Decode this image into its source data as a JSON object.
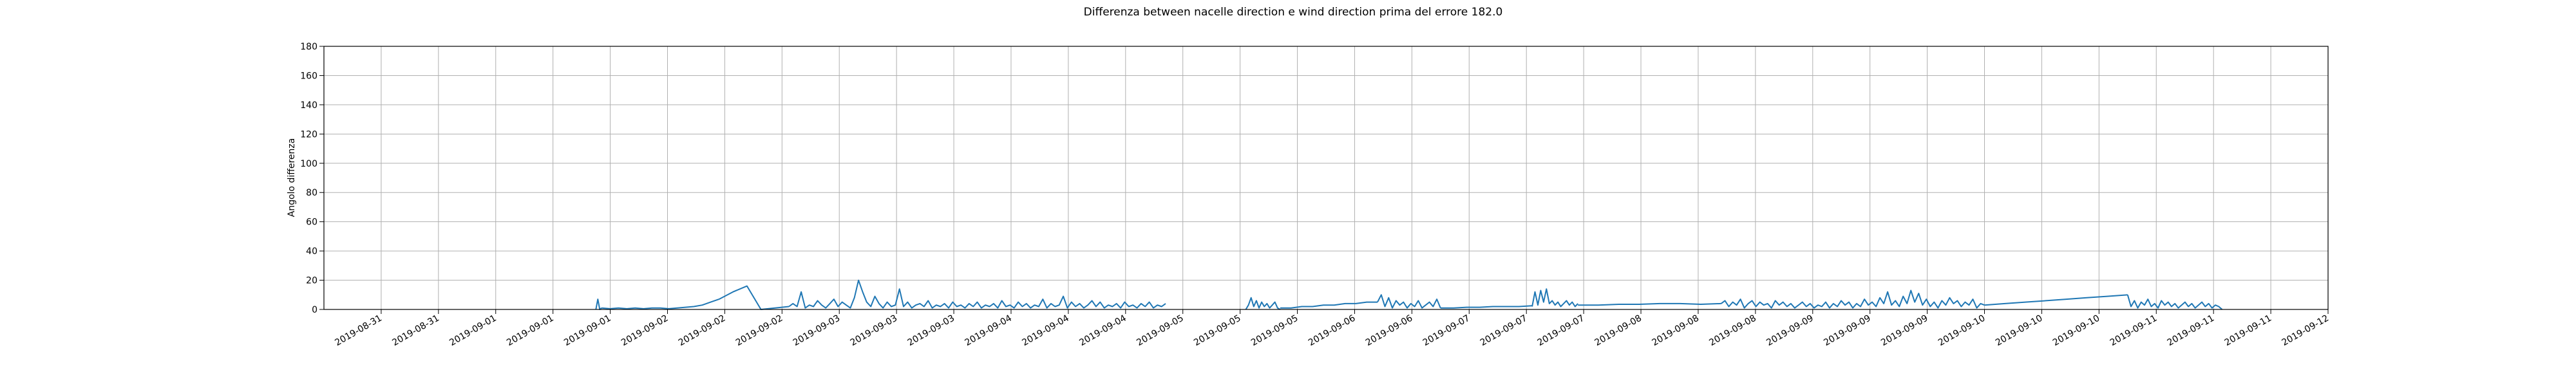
{
  "chart_data": {
    "type": "line",
    "title": "Differenza between nacelle direction e wind direction prima del errore 182.0",
    "xlabel": "",
    "ylabel": "Angolo differenza",
    "ylim": [
      0,
      180
    ],
    "yticks": [
      0,
      20,
      40,
      60,
      80,
      100,
      120,
      140,
      160,
      180
    ],
    "xlim": [
      0,
      35
    ],
    "xticks": [
      {
        "pos": 1,
        "label": "2019-08-31"
      },
      {
        "pos": 2,
        "label": "2019-08-31"
      },
      {
        "pos": 3,
        "label": "2019-09-01"
      },
      {
        "pos": 4,
        "label": "2019-09-01"
      },
      {
        "pos": 5,
        "label": "2019-09-01"
      },
      {
        "pos": 6,
        "label": "2019-09-02"
      },
      {
        "pos": 7,
        "label": "2019-09-02"
      },
      {
        "pos": 8,
        "label": "2019-09-02"
      },
      {
        "pos": 9,
        "label": "2019-09-03"
      },
      {
        "pos": 10,
        "label": "2019-09-03"
      },
      {
        "pos": 11,
        "label": "2019-09-03"
      },
      {
        "pos": 12,
        "label": "2019-09-04"
      },
      {
        "pos": 13,
        "label": "2019-09-04"
      },
      {
        "pos": 14,
        "label": "2019-09-04"
      },
      {
        "pos": 15,
        "label": "2019-09-05"
      },
      {
        "pos": 16,
        "label": "2019-09-05"
      },
      {
        "pos": 17,
        "label": "2019-09-05"
      },
      {
        "pos": 18,
        "label": "2019-09-06"
      },
      {
        "pos": 19,
        "label": "2019-09-06"
      },
      {
        "pos": 20,
        "label": "2019-09-07"
      },
      {
        "pos": 21,
        "label": "2019-09-07"
      },
      {
        "pos": 22,
        "label": "2019-09-07"
      },
      {
        "pos": 23,
        "label": "2019-09-08"
      },
      {
        "pos": 24,
        "label": "2019-09-08"
      },
      {
        "pos": 25,
        "label": "2019-09-08"
      },
      {
        "pos": 26,
        "label": "2019-09-09"
      },
      {
        "pos": 27,
        "label": "2019-09-09"
      },
      {
        "pos": 28,
        "label": "2019-09-09"
      },
      {
        "pos": 29,
        "label": "2019-09-10"
      },
      {
        "pos": 30,
        "label": "2019-09-10"
      },
      {
        "pos": 31,
        "label": "2019-09-10"
      },
      {
        "pos": 32,
        "label": "2019-09-11"
      },
      {
        "pos": 33,
        "label": "2019-09-11"
      },
      {
        "pos": 34,
        "label": "2019-09-11"
      },
      {
        "pos": 35,
        "label": "2019-09-12"
      }
    ],
    "series": [
      {
        "name": "Angolo differenza",
        "color": "#1f77b4",
        "segments": [
          {
            "x0": 4.75,
            "x1": 4.85,
            "values": [
              0,
              7,
              0,
              1
            ]
          },
          {
            "x0": 4.85,
            "x1": 6.9,
            "values": [
              1,
              0.5,
              1,
              0.5,
              1,
              0.5,
              1,
              1,
              0.5,
              1,
              1.5,
              2,
              3,
              5,
              7
            ]
          },
          {
            "x0": 6.9,
            "x1": 8.12,
            "values": [
              7,
              12,
              16,
              0,
              1,
              2
            ]
          },
          {
            "x0": 8.12,
            "x1": 14.7,
            "values": [
              2,
              4,
              2,
              12,
              1,
              3,
              2,
              6,
              3,
              1,
              4,
              7,
              2,
              5,
              3,
              1,
              8,
              20,
              12,
              5,
              2,
              9,
              4,
              1,
              5,
              2,
              3,
              14,
              2,
              5,
              1,
              3,
              4,
              2,
              6,
              1,
              3,
              2,
              4,
              1,
              5,
              2,
              3,
              1,
              4,
              2,
              5,
              1,
              3,
              2,
              4,
              1,
              6,
              2,
              3,
              1,
              5,
              2,
              4,
              1,
              3,
              2,
              7,
              1,
              4,
              2,
              3,
              9,
              1,
              5,
              2,
              4,
              1,
              3,
              6,
              2,
              5,
              1,
              3,
              2,
              4,
              1,
              5,
              2,
              3,
              1,
              4,
              2,
              5,
              1,
              3,
              2,
              4
            ]
          },
          {
            "x0": 16.1,
            "x1": 16.7,
            "values": [
              0,
              3,
              8,
              2,
              6,
              1,
              5,
              2,
              4,
              1,
              3,
              5,
              1,
              0
            ]
          },
          {
            "x0": 16.7,
            "x1": 18.4,
            "values": [
              1,
              1,
              2,
              2,
              3,
              3,
              4,
              4,
              5,
              5
            ]
          },
          {
            "x0": 18.4,
            "x1": 19.5,
            "values": [
              5,
              10,
              2,
              8,
              1,
              6,
              3,
              5,
              1,
              4,
              2,
              6,
              1,
              3,
              5,
              2,
              7,
              1
            ]
          },
          {
            "x0": 19.5,
            "x1": 21.1,
            "values": [
              1,
              1,
              1.5,
              1.5,
              2,
              2,
              2,
              2.5
            ]
          },
          {
            "x0": 21.1,
            "x1": 21.9,
            "values": [
              2,
              12,
              3,
              13,
              5,
              14,
              4,
              6,
              3,
              5,
              2,
              4,
              6,
              3,
              5,
              2,
              4
            ]
          },
          {
            "x0": 21.9,
            "x1": 24.4,
            "values": [
              3,
              3,
              3.5,
              3.5,
              4,
              4,
              3.5,
              4
            ]
          },
          {
            "x0": 24.4,
            "x1": 29.0,
            "values": [
              4,
              6,
              2,
              5,
              3,
              7,
              1,
              4,
              6,
              2,
              5,
              3,
              4,
              1,
              6,
              3,
              5,
              2,
              4,
              1,
              3,
              5,
              2,
              4,
              1,
              3,
              2,
              5,
              1,
              4,
              2,
              6,
              3,
              5,
              1,
              4,
              2,
              7,
              3,
              5,
              2,
              8,
              4,
              12,
              3,
              6,
              2,
              9,
              4,
              13,
              5,
              11,
              3,
              7,
              2,
              5,
              1,
              6,
              3,
              8,
              4,
              6,
              2,
              5,
              3,
              7,
              1,
              4,
              3
            ]
          },
          {
            "x0": 29.0,
            "x1": 31.5,
            "values": [
              3,
              4,
              5,
              6,
              7,
              8,
              9,
              10
            ]
          },
          {
            "x0": 31.5,
            "x1": 33.15,
            "values": [
              10,
              2,
              6,
              1,
              5,
              3,
              7,
              2,
              4,
              1,
              6,
              3,
              5,
              2,
              4,
              1,
              3,
              5,
              2,
              4,
              1,
              3,
              5,
              2,
              4,
              1,
              3,
              2,
              0
            ]
          }
        ]
      }
    ]
  }
}
